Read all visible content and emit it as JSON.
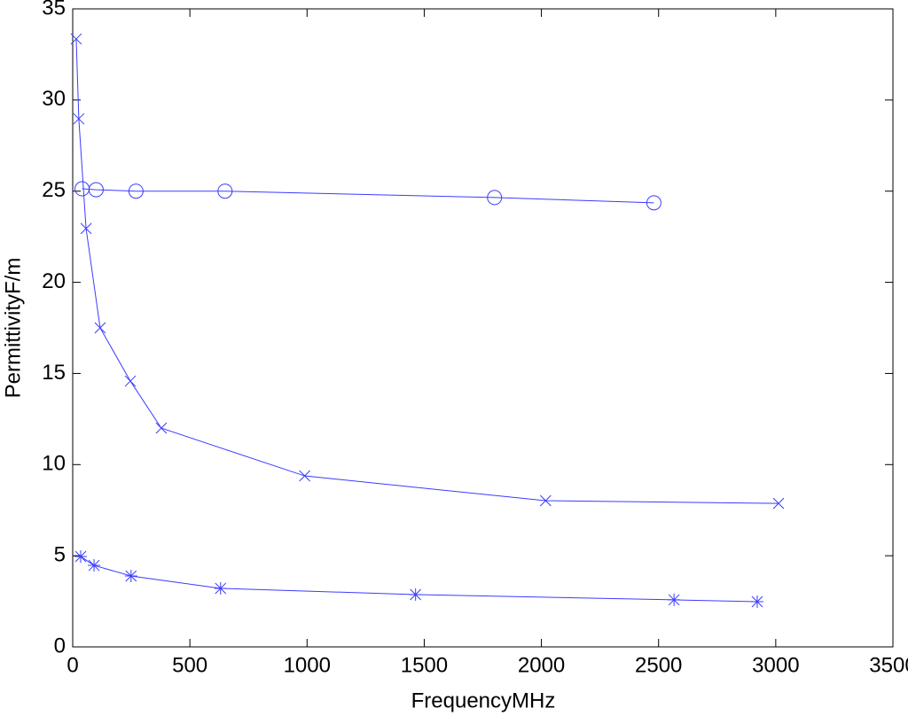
{
  "chart_data": {
    "type": "line",
    "xlabel": "FrequencyMHz",
    "ylabel": "PermittivityF/m",
    "xlim": [
      0,
      3500
    ],
    "xticks": [
      0,
      500,
      1000,
      1500,
      2000,
      2500,
      3000,
      3500
    ],
    "ylim": [
      0,
      35
    ],
    "yticks": [
      0,
      5,
      10,
      15,
      20,
      25,
      30,
      35
    ],
    "grid": false,
    "series": [
      {
        "color": "#3b3bff",
        "marker": "circle",
        "x": [
          40,
          100,
          270,
          650,
          1800,
          2480
        ],
        "values": [
          25.13,
          25.08,
          25.0,
          25.0,
          24.65,
          24.36
        ]
      },
      {
        "color": "#3b3bff",
        "marker": "x",
        "x": [
          15,
          26,
          57,
          117,
          246,
          378,
          990,
          2018,
          3012
        ],
        "values": [
          33.35,
          28.97,
          22.95,
          17.5,
          14.58,
          12.0,
          9.38,
          8.02,
          7.87
        ]
      },
      {
        "color": "#3b3bff",
        "marker": "star",
        "x": [
          34,
          91,
          249,
          631,
          1463,
          2566,
          2921
        ],
        "values": [
          4.96,
          4.47,
          3.89,
          3.21,
          2.87,
          2.58,
          2.48
        ]
      }
    ]
  }
}
